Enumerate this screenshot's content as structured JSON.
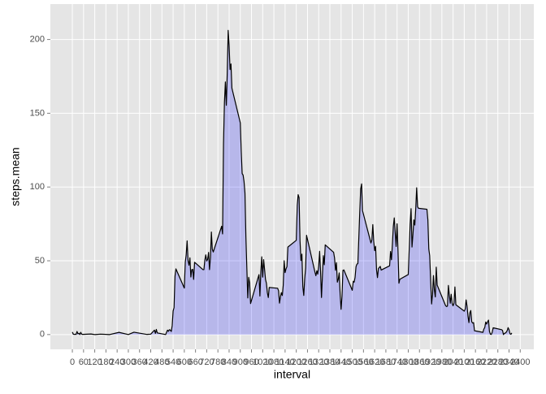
{
  "chart_data": {
    "type": "area",
    "x_label": "interval",
    "y_label": "steps.mean",
    "color": "#000000",
    "fill": "#0000ff",
    "fill_opacity": 0.2,
    "grid": true,
    "xlim": [
      -117.75,
      2472.75
    ],
    "ylim": [
      -10,
      224
    ],
    "xticks": [
      0,
      60,
      120,
      180,
      240,
      300,
      360,
      420,
      480,
      540,
      600,
      660,
      720,
      780,
      840,
      900,
      960,
      1020,
      1080,
      1140,
      1200,
      1260,
      1320,
      1380,
      1440,
      1500,
      1560,
      1620,
      1680,
      1740,
      1800,
      1860,
      1920,
      1980,
      2040,
      2100,
      2160,
      2220,
      2280,
      2340,
      2400
    ],
    "yticks": [
      0,
      50,
      100,
      150,
      200
    ],
    "x": [
      0,
      5,
      10,
      15,
      20,
      25,
      30,
      35,
      40,
      45,
      50,
      55,
      100,
      110,
      120,
      150,
      200,
      250,
      300,
      330,
      400,
      420,
      440,
      445,
      450,
      455,
      500,
      505,
      510,
      515,
      520,
      525,
      530,
      535,
      540,
      545,
      550,
      555,
      600,
      605,
      610,
      615,
      620,
      625,
      630,
      635,
      640,
      645,
      650,
      655,
      700,
      705,
      710,
      715,
      720,
      725,
      730,
      735,
      740,
      745,
      750,
      755,
      800,
      805,
      810,
      815,
      820,
      825,
      830,
      835,
      840,
      845,
      850,
      855,
      900,
      905,
      910,
      915,
      920,
      925,
      930,
      935,
      940,
      945,
      950,
      955,
      1000,
      1005,
      1010,
      1015,
      1020,
      1025,
      1030,
      1035,
      1040,
      1045,
      1050,
      1055,
      1100,
      1105,
      1110,
      1115,
      1120,
      1125,
      1130,
      1135,
      1140,
      1145,
      1150,
      1155,
      1200,
      1205,
      1210,
      1215,
      1220,
      1225,
      1230,
      1235,
      1240,
      1245,
      1250,
      1255,
      1300,
      1305,
      1310,
      1315,
      1320,
      1325,
      1330,
      1335,
      1340,
      1345,
      1350,
      1355,
      1400,
      1405,
      1410,
      1415,
      1420,
      1425,
      1430,
      1435,
      1440,
      1445,
      1450,
      1455,
      1500,
      1505,
      1510,
      1515,
      1520,
      1525,
      1530,
      1535,
      1540,
      1545,
      1550,
      1555,
      1600,
      1605,
      1610,
      1615,
      1620,
      1625,
      1630,
      1635,
      1640,
      1645,
      1650,
      1655,
      1700,
      1705,
      1710,
      1715,
      1720,
      1725,
      1730,
      1735,
      1740,
      1745,
      1750,
      1755,
      1800,
      1805,
      1810,
      1815,
      1820,
      1825,
      1830,
      1835,
      1840,
      1845,
      1850,
      1855,
      1900,
      1905,
      1910,
      1915,
      1920,
      1925,
      1930,
      1935,
      1940,
      1945,
      1950,
      1955,
      2000,
      2005,
      2010,
      2015,
      2020,
      2025,
      2030,
      2035,
      2040,
      2045,
      2050,
      2055,
      2100,
      2105,
      2110,
      2115,
      2120,
      2125,
      2130,
      2135,
      2140,
      2145,
      2150,
      2155,
      2200,
      2205,
      2210,
      2215,
      2220,
      2225,
      2230,
      2235,
      2240,
      2245,
      2250,
      2255,
      2300,
      2305,
      2310,
      2315,
      2320,
      2325,
      2330,
      2335,
      2340,
      2345,
      2350,
      2355
    ],
    "values": [
      1.7,
      0.3,
      0.1,
      0.2,
      0.1,
      2.1,
      0.5,
      0.9,
      0,
      1.5,
      0.3,
      0.1,
      0.4,
      0.2,
      0,
      0.3,
      0,
      1.5,
      0,
      1.6,
      0.1,
      0.3,
      3,
      0.8,
      3.5,
      1.1,
      0,
      1.6,
      3,
      2.2,
      3.3,
      3,
      2.1,
      6,
      16,
      18.3,
      39.5,
      44.5,
      31.5,
      49,
      54,
      63.5,
      50,
      47,
      52,
      39,
      44,
      44.2,
      37.4,
      49,
      44,
      44,
      50.5,
      54,
      49.9,
      51,
      55.7,
      44,
      52,
      69.5,
      57.8,
      56,
      73.4,
      68.2,
      129.4,
      157.5,
      171.2,
      155.4,
      177.3,
      206.2,
      195.9,
      179.6,
      183.4,
      167,
      143.5,
      124,
      109.1,
      108.1,
      103.7,
      95.9,
      66.2,
      45.2,
      24.8,
      38.8,
      34.98,
      21,
      40.6,
      26.1,
      42.4,
      52.7,
      38.9,
      50.8,
      44.3,
      37.4,
      34.7,
      28.3,
      25.1,
      31.9,
      31.4,
      29.7,
      21.3,
      25.5,
      28.4,
      26.5,
      33.4,
      50,
      42,
      44.6,
      46,
      59.3,
      63.9,
      87.7,
      94.8,
      92.8,
      63.4,
      50.2,
      54.5,
      32.4,
      26.5,
      37.7,
      45.1,
      67.3,
      42.3,
      39.9,
      43.3,
      40.98,
      46.2,
      56.4,
      42.8,
      25.1,
      39.96,
      53.5,
      47.3,
      60.8,
      55.75,
      51.96,
      43.6,
      48.7,
      35.5,
      37.5,
      41.8,
      27.5,
      17.1,
      26.1,
      43.6,
      43.8,
      30,
      36.1,
      35.5,
      38.8,
      45.96,
      47.75,
      48.1,
      65.3,
      82.9,
      98.7,
      102.1,
      83.96,
      62.1,
      64.1,
      74.5,
      63.2,
      56.9,
      59.8,
      43.9,
      38.6,
      44.7,
      45.5,
      46.2,
      43.7,
      46.6,
      56.3,
      50.7,
      61.2,
      73.4,
      79.1,
      68.9,
      59.7,
      75.1,
      56.5,
      34.8,
      37.5,
      40.7,
      58,
      74.7,
      85.3,
      59.3,
      67.8,
      77.7,
      74.2,
      85.3,
      99.5,
      86.6,
      85.6,
      84.9,
      77.8,
      58,
      53.4,
      36.3,
      20.7,
      27.4,
      40,
      30.2,
      25.5,
      45.7,
      33.5,
      19.6,
      19,
      19.3,
      33.3,
      26.8,
      21.2,
      27.3,
      21.3,
      19.5,
      21.3,
      32.3,
      20.2,
      15.9,
      17.2,
      23.5,
      19.2,
      12.5,
      8.1,
      14.7,
      16.3,
      8.7,
      7.8,
      8.1,
      2.6,
      1.5,
      3.7,
      4.8,
      8.5,
      7.1,
      8.7,
      9.8,
      2.2,
      0.3,
      0.1,
      1.6,
      4.6,
      3.3,
      2.8,
      0,
      0.8,
      0.96,
      1.6,
      2.6,
      4.7,
      3.3,
      0.6,
      0.2,
      1.1
    ]
  }
}
